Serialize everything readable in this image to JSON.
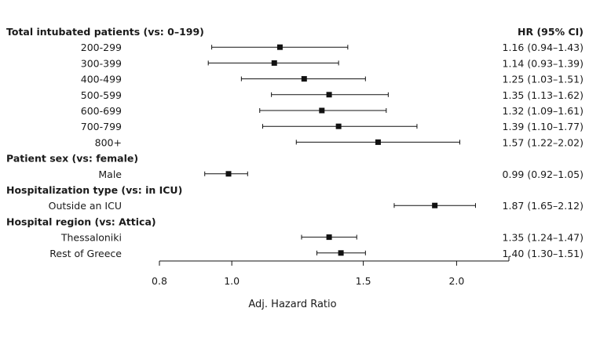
{
  "chart_data": {
    "type": "forest",
    "xlabel": "Adj. Hazard Ratio",
    "xlim": [
      0.8,
      2.35
    ],
    "xscale": "log",
    "x_ticks": [
      {
        "value": 0.8,
        "label": "0.8"
      },
      {
        "value": 1.0,
        "label": "1.0"
      },
      {
        "value": 1.5,
        "label": "1.5"
      },
      {
        "value": 2.0,
        "label": "2.0"
      }
    ],
    "hr_header": "HR (95% CI)",
    "groups": [
      {
        "heading": "Total intubated patients (vs: 0–199)",
        "rows": [
          {
            "label": "200-299",
            "hr": 1.16,
            "lo": 0.94,
            "hi": 1.43,
            "text": "1.16 (0.94–1.43)"
          },
          {
            "label": "300-399",
            "hr": 1.14,
            "lo": 0.93,
            "hi": 1.39,
            "text": "1.14 (0.93–1.39)"
          },
          {
            "label": "400-499",
            "hr": 1.25,
            "lo": 1.03,
            "hi": 1.51,
            "text": "1.25 (1.03–1.51)"
          },
          {
            "label": "500-599",
            "hr": 1.35,
            "lo": 1.13,
            "hi": 1.62,
            "text": "1.35 (1.13–1.62)"
          },
          {
            "label": "600-699",
            "hr": 1.32,
            "lo": 1.09,
            "hi": 1.61,
            "text": "1.32 (1.09–1.61)"
          },
          {
            "label": "700-799",
            "hr": 1.39,
            "lo": 1.1,
            "hi": 1.77,
            "text": "1.39 (1.10–1.77)"
          },
          {
            "label": "800+",
            "hr": 1.57,
            "lo": 1.22,
            "hi": 2.02,
            "text": "1.57 (1.22–2.02)"
          }
        ]
      },
      {
        "heading": "Patient sex (vs: female)",
        "rows": [
          {
            "label": "Male",
            "hr": 0.99,
            "lo": 0.92,
            "hi": 1.05,
            "text": "0.99 (0.92–1.05)"
          }
        ]
      },
      {
        "heading": "Hospitalization type (vs: in ICU)",
        "rows": [
          {
            "label": "Outside an ICU",
            "hr": 1.87,
            "lo": 1.65,
            "hi": 2.12,
            "text": "1.87 (1.65–2.12)"
          }
        ]
      },
      {
        "heading": "Hospital region (vs: Attica)",
        "rows": [
          {
            "label": "Thessaloniki",
            "hr": 1.35,
            "lo": 1.24,
            "hi": 1.47,
            "text": "1.35 (1.24–1.47)"
          },
          {
            "label": "Rest of Greece",
            "hr": 1.4,
            "lo": 1.3,
            "hi": 1.51,
            "text": "1.40 (1.30–1.51)"
          }
        ]
      }
    ]
  }
}
